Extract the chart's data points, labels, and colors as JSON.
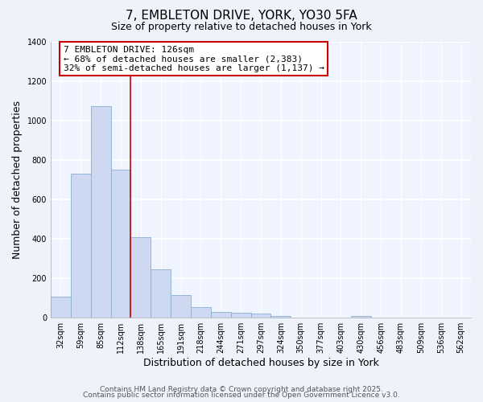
{
  "title": "7, EMBLETON DRIVE, YORK, YO30 5FA",
  "subtitle": "Size of property relative to detached houses in York",
  "xlabel": "Distribution of detached houses by size in York",
  "ylabel": "Number of detached properties",
  "categories": [
    "32sqm",
    "59sqm",
    "85sqm",
    "112sqm",
    "138sqm",
    "165sqm",
    "191sqm",
    "218sqm",
    "244sqm",
    "271sqm",
    "297sqm",
    "324sqm",
    "350sqm",
    "377sqm",
    "403sqm",
    "430sqm",
    "456sqm",
    "483sqm",
    "509sqm",
    "536sqm",
    "562sqm"
  ],
  "values": [
    105,
    730,
    1070,
    750,
    405,
    245,
    112,
    50,
    27,
    22,
    18,
    5,
    0,
    0,
    0,
    5,
    0,
    0,
    0,
    0,
    0
  ],
  "bar_color": "#ccd9f0",
  "bar_edge_color": "#8aafd4",
  "highlight_vline_x": 3.5,
  "annotation_line1": "7 EMBLETON DRIVE: 126sqm",
  "annotation_line2": "← 68% of detached houses are smaller (2,383)",
  "annotation_line3": "32% of semi-detached houses are larger (1,137) →",
  "annotation_box_color": "#ffffff",
  "annotation_box_edge_color": "#cc0000",
  "vline_color": "#cc0000",
  "ylim": [
    0,
    1400
  ],
  "yticks": [
    0,
    200,
    400,
    600,
    800,
    1000,
    1200,
    1400
  ],
  "footer_line1": "Contains HM Land Registry data © Crown copyright and database right 2025.",
  "footer_line2": "Contains public sector information licensed under the Open Government Licence v3.0.",
  "bg_color": "#eef2fa",
  "plot_bg_color": "#f0f4ff",
  "title_fontsize": 11,
  "subtitle_fontsize": 9,
  "axis_label_fontsize": 9,
  "tick_fontsize": 7,
  "annotation_fontsize": 8,
  "footer_fontsize": 6.5,
  "grid_color": "#dde4f0"
}
